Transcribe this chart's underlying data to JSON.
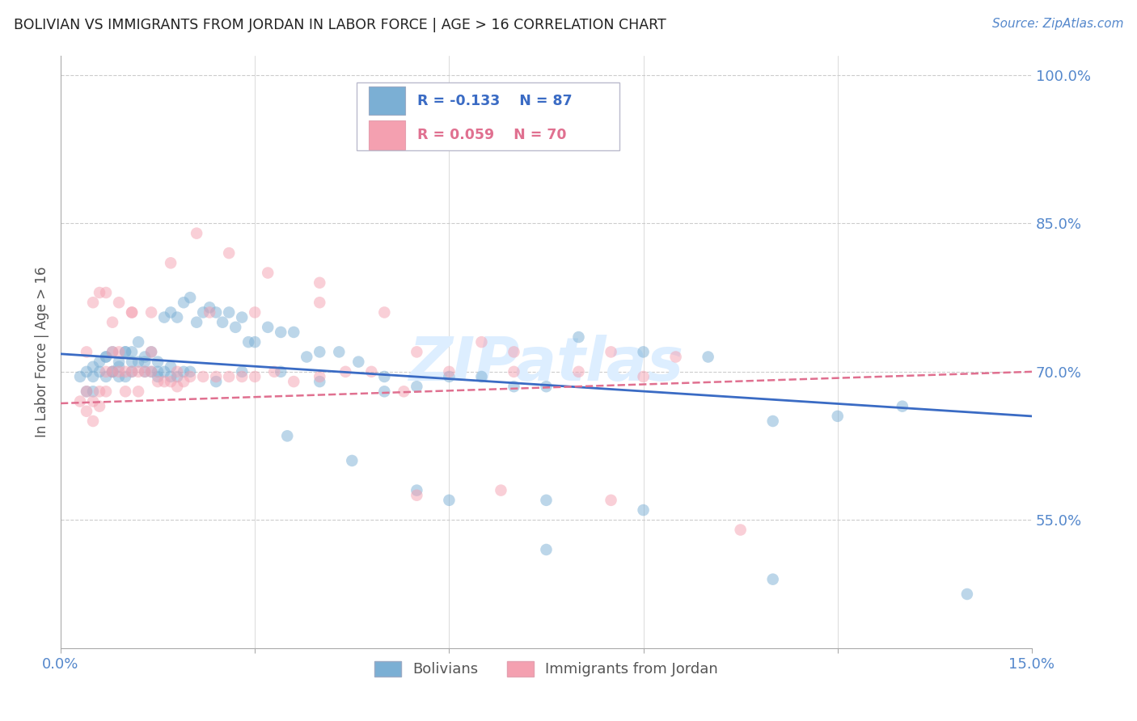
{
  "title": "BOLIVIAN VS IMMIGRANTS FROM JORDAN IN LABOR FORCE | AGE > 16 CORRELATION CHART",
  "source": "Source: ZipAtlas.com",
  "ylabel": "In Labor Force | Age > 16",
  "xlim": [
    0.0,
    0.15
  ],
  "ylim": [
    0.42,
    1.02
  ],
  "xticks": [
    0.0,
    0.03,
    0.06,
    0.09,
    0.12,
    0.15
  ],
  "yticks_right": [
    0.55,
    0.7,
    0.85,
    1.0
  ],
  "ytick_labels_right": [
    "55.0%",
    "70.0%",
    "85.0%",
    "100.0%"
  ],
  "bolivians_R": -0.133,
  "bolivians_N": 87,
  "jordan_R": 0.059,
  "jordan_N": 70,
  "blue_color": "#7BAFD4",
  "pink_color": "#F4A0B0",
  "blue_line_color": "#3A6BC4",
  "pink_line_color": "#E07090",
  "grid_color": "#CCCCCC",
  "background_color": "#FFFFFF",
  "title_color": "#222222",
  "axis_color": "#5588CC",
  "watermark_color": "#DDEEFF",
  "legend_label_blue": "Bolivians",
  "legend_label_pink": "Immigrants from Jordan",
  "blue_trend_x0": 0.0,
  "blue_trend_y0": 0.718,
  "blue_trend_x1": 0.15,
  "blue_trend_y1": 0.655,
  "pink_trend_x0": 0.0,
  "pink_trend_y0": 0.668,
  "pink_trend_x1": 0.15,
  "pink_trend_y1": 0.7,
  "blue_scatter_x": [
    0.003,
    0.004,
    0.004,
    0.005,
    0.005,
    0.006,
    0.006,
    0.007,
    0.007,
    0.008,
    0.008,
    0.008,
    0.009,
    0.009,
    0.01,
    0.01,
    0.01,
    0.011,
    0.011,
    0.012,
    0.012,
    0.013,
    0.013,
    0.014,
    0.014,
    0.015,
    0.015,
    0.016,
    0.016,
    0.017,
    0.017,
    0.018,
    0.018,
    0.019,
    0.019,
    0.02,
    0.021,
    0.022,
    0.023,
    0.024,
    0.025,
    0.026,
    0.027,
    0.028,
    0.029,
    0.03,
    0.032,
    0.034,
    0.036,
    0.038,
    0.04,
    0.043,
    0.046,
    0.05,
    0.055,
    0.06,
    0.065,
    0.07,
    0.075,
    0.08,
    0.09,
    0.1,
    0.11,
    0.12,
    0.13,
    0.005,
    0.007,
    0.009,
    0.011,
    0.013,
    0.015,
    0.017,
    0.02,
    0.024,
    0.028,
    0.034,
    0.04,
    0.05,
    0.06,
    0.075,
    0.09,
    0.11,
    0.035,
    0.045,
    0.055,
    0.075,
    0.14
  ],
  "blue_scatter_y": [
    0.695,
    0.7,
    0.68,
    0.695,
    0.68,
    0.7,
    0.71,
    0.695,
    0.715,
    0.7,
    0.72,
    0.7,
    0.71,
    0.695,
    0.72,
    0.695,
    0.72,
    0.72,
    0.7,
    0.73,
    0.71,
    0.715,
    0.7,
    0.72,
    0.7,
    0.71,
    0.695,
    0.755,
    0.7,
    0.76,
    0.705,
    0.755,
    0.695,
    0.77,
    0.7,
    0.775,
    0.75,
    0.76,
    0.765,
    0.76,
    0.75,
    0.76,
    0.745,
    0.755,
    0.73,
    0.73,
    0.745,
    0.74,
    0.74,
    0.715,
    0.72,
    0.72,
    0.71,
    0.695,
    0.685,
    0.695,
    0.695,
    0.685,
    0.685,
    0.735,
    0.72,
    0.715,
    0.65,
    0.655,
    0.665,
    0.705,
    0.715,
    0.705,
    0.71,
    0.71,
    0.7,
    0.695,
    0.7,
    0.69,
    0.7,
    0.7,
    0.69,
    0.68,
    0.57,
    0.57,
    0.56,
    0.49,
    0.635,
    0.61,
    0.58,
    0.52,
    0.475
  ],
  "pink_scatter_x": [
    0.003,
    0.004,
    0.004,
    0.005,
    0.005,
    0.006,
    0.006,
    0.007,
    0.007,
    0.008,
    0.008,
    0.009,
    0.009,
    0.01,
    0.01,
    0.011,
    0.012,
    0.012,
    0.013,
    0.014,
    0.015,
    0.016,
    0.017,
    0.018,
    0.019,
    0.02,
    0.022,
    0.024,
    0.026,
    0.028,
    0.03,
    0.033,
    0.036,
    0.04,
    0.044,
    0.048,
    0.053,
    0.06,
    0.07,
    0.08,
    0.09,
    0.005,
    0.007,
    0.009,
    0.011,
    0.014,
    0.017,
    0.021,
    0.026,
    0.032,
    0.04,
    0.05,
    0.065,
    0.085,
    0.004,
    0.006,
    0.008,
    0.011,
    0.014,
    0.018,
    0.023,
    0.03,
    0.04,
    0.055,
    0.07,
    0.095,
    0.055,
    0.068,
    0.085,
    0.105
  ],
  "pink_scatter_y": [
    0.67,
    0.68,
    0.66,
    0.67,
    0.65,
    0.665,
    0.68,
    0.7,
    0.68,
    0.72,
    0.7,
    0.72,
    0.7,
    0.7,
    0.68,
    0.7,
    0.68,
    0.7,
    0.7,
    0.7,
    0.69,
    0.69,
    0.69,
    0.685,
    0.69,
    0.695,
    0.695,
    0.695,
    0.695,
    0.695,
    0.695,
    0.7,
    0.69,
    0.695,
    0.7,
    0.7,
    0.68,
    0.7,
    0.7,
    0.7,
    0.695,
    0.77,
    0.78,
    0.77,
    0.76,
    0.76,
    0.81,
    0.84,
    0.82,
    0.8,
    0.79,
    0.76,
    0.73,
    0.72,
    0.72,
    0.78,
    0.75,
    0.76,
    0.72,
    0.7,
    0.76,
    0.76,
    0.77,
    0.72,
    0.72,
    0.715,
    0.575,
    0.58,
    0.57,
    0.54
  ]
}
